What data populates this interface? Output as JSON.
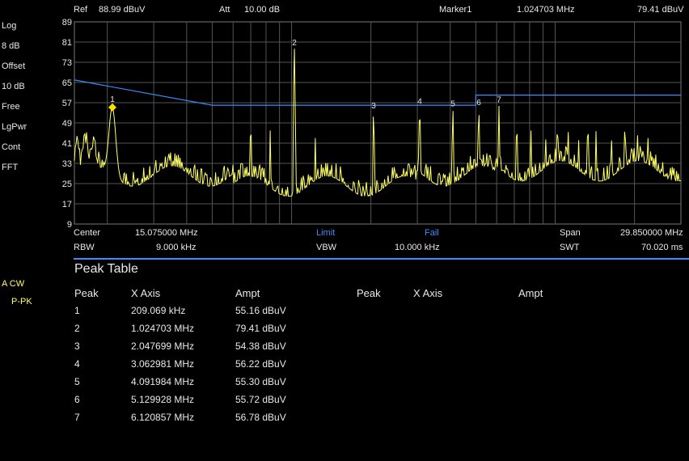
{
  "header": {
    "ref_label": "Ref",
    "ref_value": "88.99 dBuV",
    "att_label": "Att",
    "att_value": "10.00 dB",
    "marker_label": "Marker1",
    "marker_freq": "1.024703 MHz",
    "marker_ampl": "79.41 dBuV"
  },
  "left_panel": [
    "Log",
    "8 dB",
    "Offset",
    "10 dB",
    "Free",
    "LgPwr",
    "Cont",
    "FFT"
  ],
  "trace_info": {
    "mode": "A CW",
    "detector": "P-PK"
  },
  "footer": {
    "center_label": "Center",
    "center_value": "15.075000 MHz",
    "limit_label": "Limit",
    "fail_label": "Fail",
    "span_label": "Span",
    "span_value": "29.850000 MHz",
    "rbw_label": "RBW",
    "rbw_value": "9.000 kHz",
    "vbw_label": "VBW",
    "vbw_value": "10.000 kHz",
    "swt_label": "SWT",
    "swt_value": "70.020 ms"
  },
  "peak_table": {
    "title": "Peak Table",
    "headers": [
      "Peak",
      "X Axis",
      "Ampt"
    ],
    "rows": [
      {
        "peak": "1",
        "x": "209.069 kHz",
        "ampt": "55.16 dBuV"
      },
      {
        "peak": "2",
        "x": "1.024703 MHz",
        "ampt": "79.41 dBuV"
      },
      {
        "peak": "3",
        "x": "2.047699 MHz",
        "ampt": "54.38 dBuV"
      },
      {
        "peak": "4",
        "x": "3.062981 MHz",
        "ampt": "56.22 dBuV"
      },
      {
        "peak": "5",
        "x": "4.091984 MHz",
        "ampt": "55.30 dBuV"
      },
      {
        "peak": "6",
        "x": "5.129928 MHz",
        "ampt": "55.72 dBuV"
      },
      {
        "peak": "7",
        "x": "6.120857 MHz",
        "ampt": "56.78 dBuV"
      }
    ]
  },
  "chart_data": {
    "type": "line",
    "x_scale": "log",
    "xlim_mhz": [
      0.15,
      30
    ],
    "ylim": [
      9,
      89
    ],
    "y_ticks": [
      89,
      81,
      73,
      65,
      57,
      49,
      41,
      33,
      25,
      17,
      9
    ],
    "grid": true,
    "colors": {
      "trace": "#ffff66",
      "limit": "#3b8cff",
      "grid": "#555555",
      "marker": "#ffdd00"
    },
    "limit_line": [
      [
        0.15,
        66
      ],
      [
        0.5,
        56
      ],
      [
        5,
        56
      ],
      [
        5,
        60
      ],
      [
        30,
        60
      ]
    ],
    "markers": [
      {
        "label": "1",
        "x_mhz": 0.209069,
        "y": 55.16
      },
      {
        "label": "2",
        "x_mhz": 1.024703,
        "y": 79.41
      },
      {
        "label": "3",
        "x_mhz": 2.047699,
        "y": 54.38
      },
      {
        "label": "4",
        "x_mhz": 3.062981,
        "y": 56.22
      },
      {
        "label": "5",
        "x_mhz": 4.091984,
        "y": 55.3
      },
      {
        "label": "6",
        "x_mhz": 5.129928,
        "y": 55.72
      },
      {
        "label": "7",
        "x_mhz": 6.120857,
        "y": 56.78
      }
    ],
    "active_marker": "1"
  }
}
